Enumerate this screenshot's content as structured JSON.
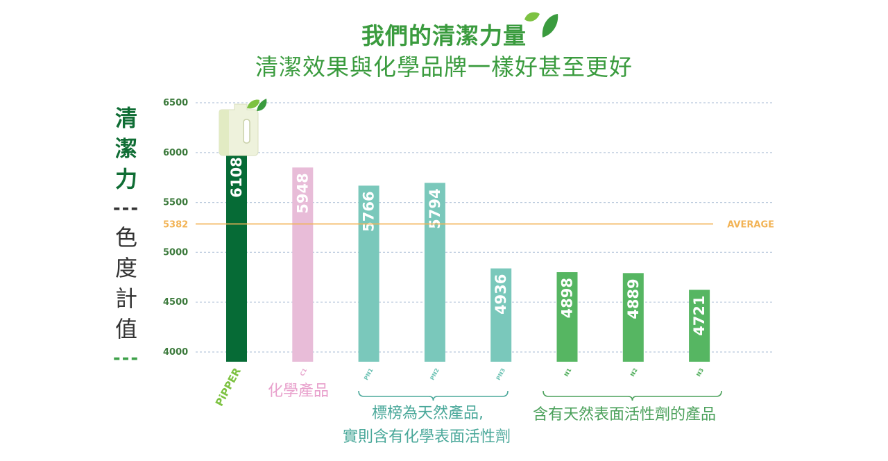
{
  "title": {
    "line1": "我們的清潔力量",
    "line2": "清潔效果與化學品牌一樣好甚至更好"
  },
  "ylabel": {
    "part1": [
      "清",
      "潔",
      "力"
    ],
    "sep": "---",
    "part2": [
      "色",
      "度",
      "計",
      "值"
    ],
    "sep2": "---"
  },
  "chart_data": {
    "type": "bar",
    "categories": [
      "PiPPER",
      "C1",
      "PN1",
      "PN2",
      "PN3",
      "N1",
      "N2",
      "N3"
    ],
    "values": [
      6108,
      5948,
      5766,
      5794,
      4936,
      4898,
      4889,
      4721
    ],
    "ylim": [
      4000,
      6500
    ],
    "yticks": [
      4000,
      4500,
      5000,
      5382,
      5500,
      6000,
      6500
    ],
    "grid": true,
    "average": {
      "value": 5382,
      "label": "AVERAGE"
    },
    "colors": {
      "PiPPER": "#066b36",
      "C1": "#e8bcd8",
      "PN1": "#7ac8bb",
      "PN2": "#7ac8bb",
      "PN3": "#7ac8bb",
      "N1": "#56b662",
      "N2": "#56b662",
      "N3": "#56b662"
    },
    "label_colors": {
      "PiPPER": "#7dc242",
      "C1": "#e8a9cf",
      "PN1": "#6fc3b5",
      "PN2": "#6fc3b5",
      "PN3": "#6fc3b5",
      "N1": "#4fad5a",
      "N2": "#4fad5a",
      "N3": "#4fad5a"
    },
    "groups": [
      {
        "name": "化學產品",
        "members": [
          "C1"
        ],
        "color": "#e8a0cc"
      },
      {
        "name": "標榜為天然產品,",
        "name2": "實則含有化學表面活性劑",
        "members": [
          "PN1",
          "PN2",
          "PN3"
        ],
        "color": "#4aa89a"
      },
      {
        "name": "含有天然表面活性劑的產品",
        "members": [
          "N1",
          "N2",
          "N3"
        ],
        "color": "#4aa05a"
      }
    ],
    "average_color": "#f2b355",
    "tick_color": "#3c7a3c",
    "grid_color": "#b8c8dc"
  }
}
